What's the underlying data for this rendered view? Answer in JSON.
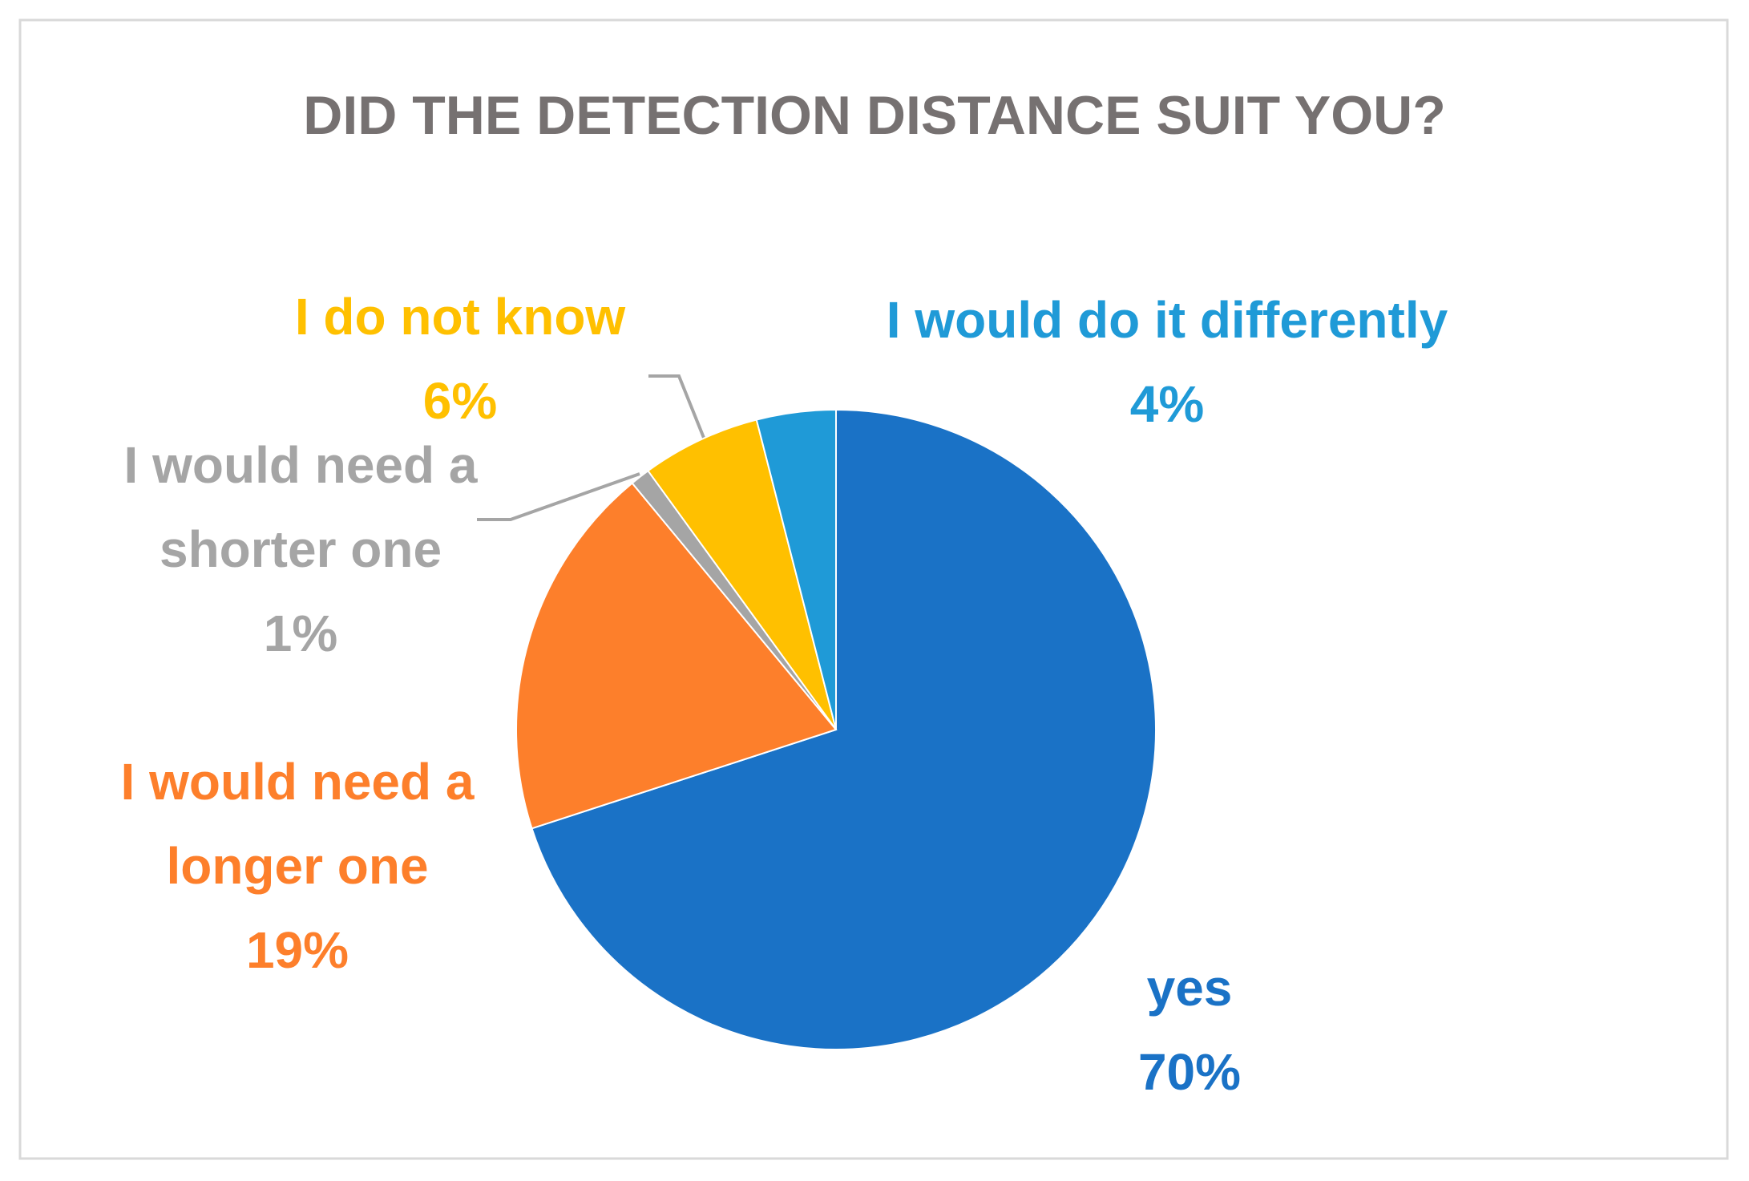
{
  "chart_data": {
    "type": "pie",
    "title": "DID THE DETECTION DISTANCE SUIT YOU?",
    "categories": [
      "yes",
      "I would need a longer one",
      "I would need a shorter one",
      "I do not know",
      "I would do it differently"
    ],
    "values": [
      70,
      19,
      1,
      6,
      4
    ],
    "value_labels": [
      "70%",
      "19%",
      "1%",
      "6%",
      "4%"
    ],
    "colors": [
      "#1a72c6",
      "#fd7f2b",
      "#a5a5a5",
      "#ffc000",
      "#1f9ad7"
    ]
  }
}
